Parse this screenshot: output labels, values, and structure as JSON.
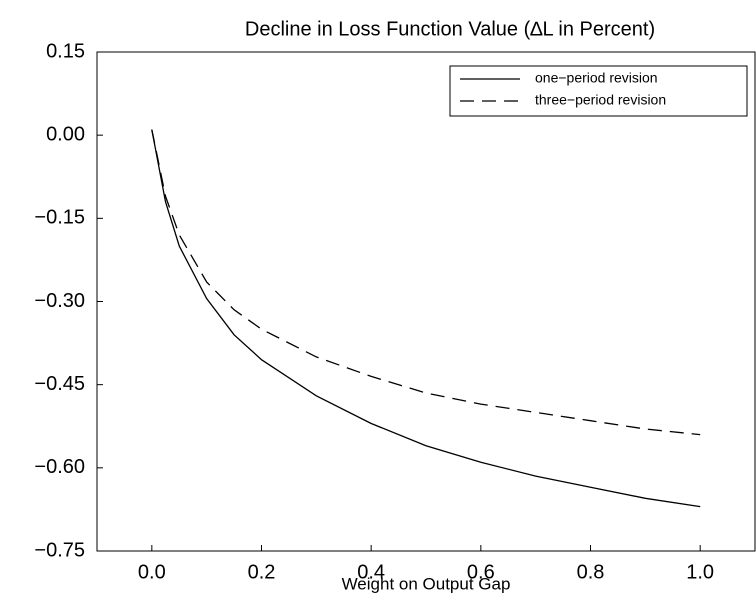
{
  "chart_data": {
    "type": "line",
    "title": "Decline in Loss Function Value (∆L in Percent)",
    "x_label": "Weight on Output Gap",
    "x": [
      0,
      0.025,
      0.05,
      0.1,
      0.15,
      0.2,
      0.3,
      0.4,
      0.5,
      0.6,
      0.7,
      0.8,
      0.9,
      1.0
    ],
    "series": [
      {
        "name": "one−period revision",
        "color": "#000000",
        "dash": "none",
        "values": [
          0.01,
          -0.12,
          -0.2,
          -0.295,
          -0.36,
          -0.405,
          -0.47,
          -0.52,
          -0.56,
          -0.59,
          -0.615,
          -0.635,
          -0.655,
          -0.67
        ]
      },
      {
        "name": "three−period revision",
        "color": "#000000",
        "dash": "14 8",
        "values": [
          0.01,
          -0.11,
          -0.18,
          -0.265,
          -0.315,
          -0.35,
          -0.4,
          -0.435,
          -0.465,
          -0.485,
          -0.5,
          -0.515,
          -0.53,
          -0.54
        ]
      }
    ],
    "xlim": [
      -0.1,
      1.1
    ],
    "xticks": [
      {
        "value": 0,
        "label": "0.0"
      },
      0.2,
      0.4,
      0.6,
      0.8,
      {
        "value": 1,
        "label": "1.0"
      }
    ],
    "ylim": [
      -0.75,
      0.15
    ],
    "yticks": [
      {
        "value": -0.75,
        "label": "−0.75"
      },
      {
        "value": -0.6,
        "label": "−0.60"
      },
      {
        "value": -0.45,
        "label": "−0.45"
      },
      {
        "value": -0.3,
        "label": "−0.30"
      },
      {
        "value": -0.15,
        "label": "−0.15"
      },
      {
        "value": 0,
        "label": "0.00"
      },
      0.15
    ],
    "legend": "upper right"
  }
}
